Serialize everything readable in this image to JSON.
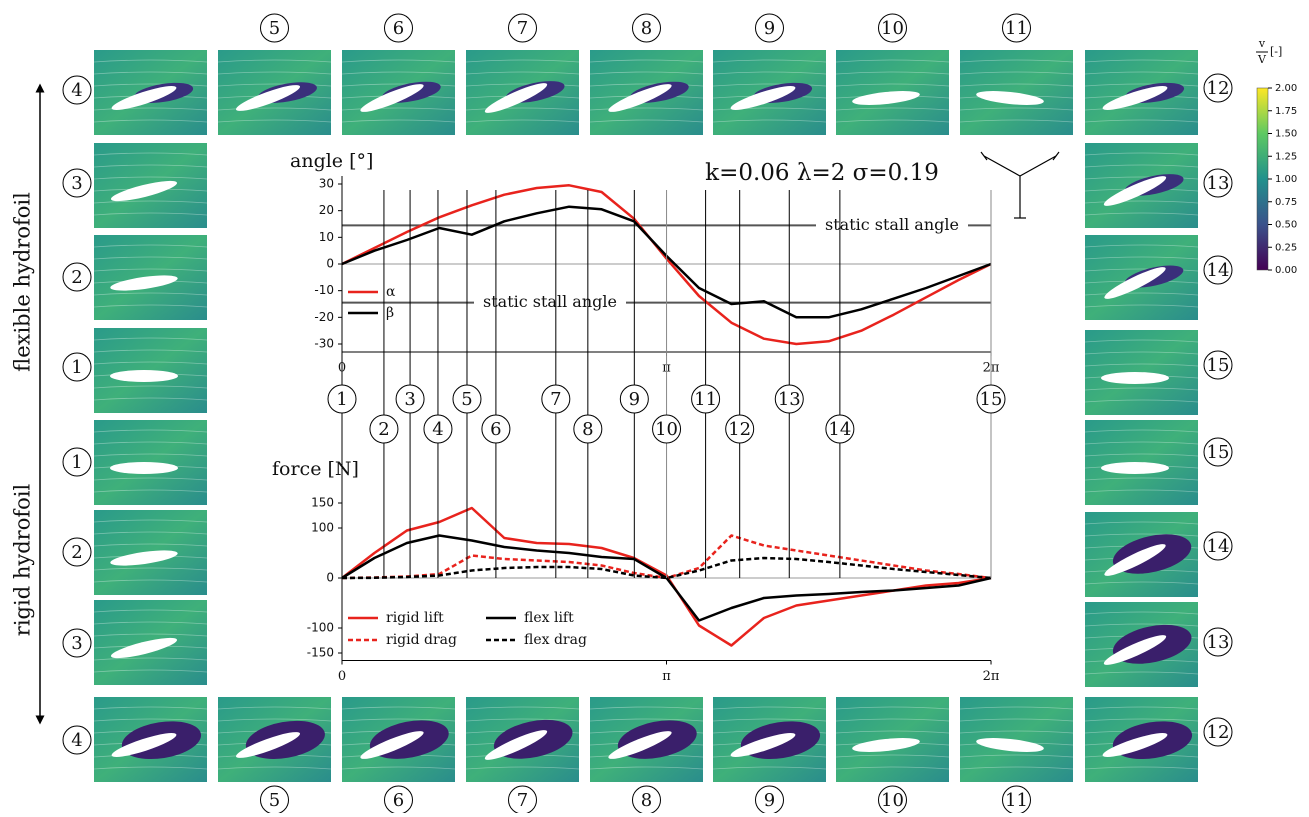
{
  "chart_data": [
    {
      "type": "line",
      "title": "angle [°]",
      "annotation": "k=0.06  λ=2  σ=0.19",
      "x": [
        0,
        0.314,
        0.628,
        0.942,
        1.257,
        1.571,
        1.885,
        2.199,
        2.513,
        2.827,
        3.142,
        3.456,
        3.77,
        4.084,
        4.398,
        4.712,
        5.027,
        5.341,
        5.655,
        5.969,
        6.283
      ],
      "series": [
        {
          "name": "α",
          "color": "#e8231d",
          "dash": false,
          "values": [
            0,
            6,
            12,
            17.5,
            22,
            26,
            28.5,
            29.5,
            27,
            17,
            2,
            -12,
            -22,
            -28,
            -30,
            -29,
            -25,
            -19,
            -12.5,
            -6,
            0
          ]
        },
        {
          "name": "β",
          "color": "#000000",
          "dash": false,
          "values": [
            0,
            5,
            9,
            13.5,
            11,
            16,
            19,
            21.5,
            20.5,
            16,
            3,
            -9,
            -15,
            -14,
            -20,
            -20,
            -17,
            -13,
            -9,
            -4.5,
            0
          ]
        }
      ],
      "reference_lines": [
        {
          "value": 14.5,
          "label": "static stall angle"
        },
        {
          "value": -14.5,
          "label": "static stall angle"
        }
      ],
      "xlim": [
        0,
        6.283
      ],
      "xticks": [
        0,
        {
          "value": 3.1416,
          "label": "π"
        },
        {
          "value": 6.2832,
          "label": "2π"
        }
      ],
      "ylim": [
        -33,
        33
      ],
      "yticks": [
        -30,
        -20,
        -10,
        0,
        10,
        20,
        30
      ],
      "legend": "lower-left"
    },
    {
      "type": "line",
      "title": "force [N]",
      "x": [
        0,
        0.314,
        0.628,
        0.942,
        1.257,
        1.571,
        1.885,
        2.199,
        2.513,
        2.827,
        3.142,
        3.456,
        3.77,
        4.084,
        4.398,
        4.712,
        5.027,
        5.341,
        5.655,
        5.969,
        6.283
      ],
      "series": [
        {
          "name": "rigid lift",
          "color": "#e8231d",
          "dash": false,
          "values": [
            0,
            50,
            95,
            112,
            140,
            80,
            70,
            68,
            60,
            40,
            5,
            -95,
            -135,
            -80,
            -55,
            -45,
            -35,
            -25,
            -15,
            -10,
            0
          ]
        },
        {
          "name": "rigid drag",
          "color": "#e8231d",
          "dash": true,
          "values": [
            0,
            1,
            3,
            8,
            45,
            38,
            35,
            32,
            25,
            10,
            0,
            20,
            85,
            65,
            55,
            45,
            35,
            25,
            15,
            8,
            0
          ]
        },
        {
          "name": "flex lift",
          "color": "#000000",
          "dash": false,
          "values": [
            0,
            40,
            70,
            85,
            75,
            62,
            55,
            50,
            42,
            38,
            0,
            -85,
            -60,
            -40,
            -35,
            -32,
            -28,
            -25,
            -20,
            -15,
            0
          ]
        },
        {
          "name": "flex drag",
          "color": "#000000",
          "dash": true,
          "values": [
            0,
            0.5,
            2,
            5,
            15,
            20,
            22,
            22,
            18,
            5,
            0,
            15,
            35,
            40,
            38,
            32,
            25,
            18,
            12,
            6,
            0
          ]
        }
      ],
      "xlim": [
        0,
        6.283
      ],
      "xticks": [
        0,
        {
          "value": 3.1416,
          "label": "π"
        },
        {
          "value": 6.2832,
          "label": "2π"
        }
      ],
      "ylim": [
        -165,
        165
      ],
      "yticks": [
        -150,
        -100,
        0,
        100,
        150
      ],
      "legend": "lower-left"
    }
  ],
  "phases": {
    "labels": [
      "1",
      "2",
      "3",
      "4",
      "5",
      "6",
      "7",
      "8",
      "9",
      "10",
      "11",
      "12",
      "13",
      "14",
      "15"
    ],
    "x": [
      0,
      0.406,
      0.659,
      0.929,
      1.21,
      1.49,
      2.07,
      2.38,
      2.83,
      3.142,
      3.52,
      3.85,
      4.33,
      4.82,
      6.283
    ]
  },
  "flexible": {
    "label": "flexible hydrofoil",
    "tiles": [
      "1",
      "2",
      "3",
      "4",
      "5",
      "6",
      "7",
      "8",
      "9",
      "10",
      "11",
      "12",
      "13",
      "14",
      "15"
    ]
  },
  "rigid": {
    "label": "rigid hydrofoil",
    "tiles": [
      "1",
      "2",
      "3",
      "4",
      "5",
      "6",
      "7",
      "8",
      "9",
      "10",
      "11",
      "12",
      "13",
      "14",
      "15"
    ]
  },
  "colorbar": {
    "numerator": "v",
    "denominator": "V",
    "unit": "[-]",
    "ticks": [
      {
        "value": 0,
        "label": "0.00"
      },
      {
        "value": 0.25,
        "label": "0.25"
      },
      {
        "value": 0.5,
        "label": "0.50"
      },
      {
        "value": 0.75,
        "label": "0.75"
      },
      {
        "value": 1,
        "label": "1.00"
      },
      {
        "value": 1.25,
        "label": "1.25"
      },
      {
        "value": 1.5,
        "label": "1.50"
      },
      {
        "value": 1.75,
        "label": "1.75"
      },
      {
        "value": 2,
        "label": "2.00"
      }
    ],
    "lim": [
      0,
      2
    ]
  }
}
